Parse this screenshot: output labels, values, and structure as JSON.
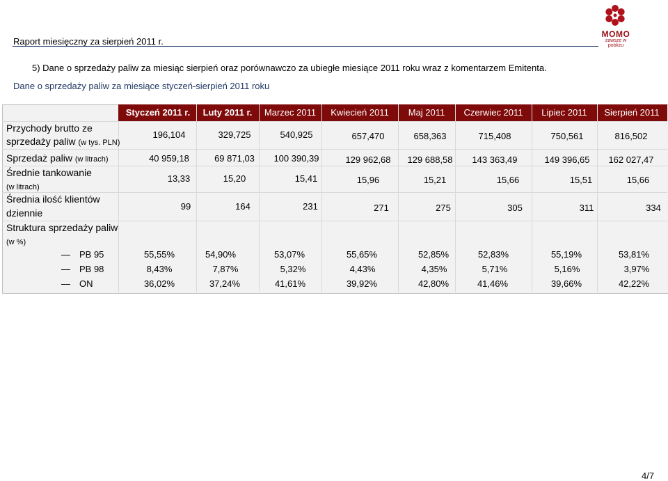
{
  "header": {
    "title": "Raport miesięczny za sierpień 2011 r.",
    "logo_text": "MOMO",
    "logo_sub": "zawsze w pobliżu",
    "accent_color": "#7f0a0a"
  },
  "section": {
    "heading": "5)   Dane o sprzedaży paliw za miesiąc sierpień oraz porównawczo za ubiegłe miesiące 2011 roku wraz z komentarzem Emitenta.",
    "subheading": "Dane o sprzedaży paliw za miesiące styczeń-sierpień 2011 roku"
  },
  "table": {
    "columns": [
      "Styczeń 2011 r.",
      "Luty 2011 r.",
      "Marzec 2011",
      "Kwiecień 2011",
      "Maj 2011",
      "Czerwiec 2011",
      "Lipiec 2011",
      "Sierpień 2011"
    ],
    "rows": {
      "revenue": {
        "label_line1": "Przychody   brutto   ze",
        "label_line2": "sprzedaży paliw",
        "label_unit": "(w tys. PLN)",
        "values": [
          "196,104",
          "329,725",
          "540,925",
          "657,470",
          "658,363",
          "715,408",
          "750,561",
          "816,502"
        ]
      },
      "fuel_sales": {
        "label": "Sprzedaż paliw",
        "label_unit": "(w litrach)",
        "values": [
          "40 959,18",
          "69 871,03",
          "100 390,39",
          "129 962,68",
          "129 688,58",
          "143 363,49",
          "149 396,65",
          "162 027,47"
        ]
      },
      "avg_fill": {
        "label": "Średnie tankowanie",
        "label_unit": "(w litrach)",
        "values": [
          "13,33",
          "15,20",
          "15,41",
          "15,96",
          "15,21",
          "15,66",
          "15,51",
          "15,66"
        ]
      },
      "avg_clients": {
        "label_line1": "Średnia   ilość   klientów",
        "label_line2": "dziennie",
        "values": [
          "99",
          "164",
          "231",
          "271",
          "275",
          "305",
          "311",
          "334"
        ]
      },
      "structure": {
        "label": "Struktura sprzedaży paliw",
        "label_unit": "(w %)",
        "items": [
          {
            "name": "PB 95",
            "values": [
              "55,55%",
              "54,90%",
              "53,07%",
              "55,65%",
              "52,85%",
              "52,83%",
              "55,19%",
              "53,81%"
            ]
          },
          {
            "name": "PB 98",
            "values": [
              "8,43%",
              "7,87%",
              "5,32%",
              "4,43%",
              "4,35%",
              "5,71%",
              "5,16%",
              "3,97%"
            ]
          },
          {
            "name": "ON",
            "values": [
              "36,02%",
              "37,24%",
              "41,61%",
              "39,92%",
              "42,80%",
              "41,46%",
              "39,66%",
              "42,22%"
            ]
          }
        ]
      }
    }
  },
  "footer": {
    "page": "4/7"
  }
}
